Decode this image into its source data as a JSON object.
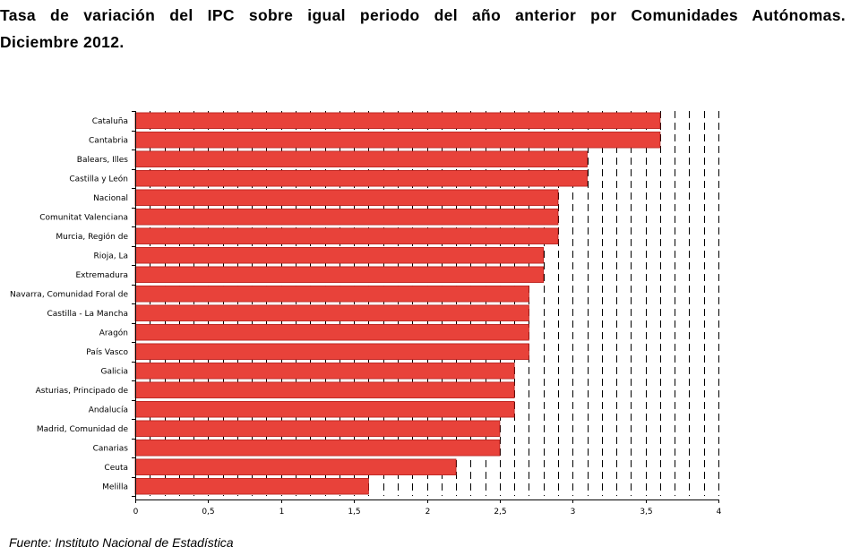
{
  "title_line1": "Tasa de variación del IPC sobre igual periodo del año anterior por Comunidades Autónomas.",
  "title_line2": "Diciembre 2012.",
  "source": "Fuente: Instituto Nacional de Estadística",
  "colors": {
    "bar": "#e8423a",
    "bar_border": "#b51e1a",
    "gridline": "#000000"
  },
  "chart_data": {
    "type": "bar",
    "orientation": "horizontal",
    "title": "Tasa de variación del IPC sobre igual periodo del año anterior por Comunidades Autónomas. Diciembre 2012.",
    "categories": [
      "Cataluña",
      "Cantabria",
      "Balears, Illes",
      "Castilla y León",
      "Nacional",
      "Comunitat Valenciana",
      "Murcia, Región de",
      "Rioja, La",
      "Extremadura",
      "Navarra, Comunidad Foral de",
      "Castilla - La Mancha",
      "Aragón",
      "País Vasco",
      "Galicia",
      "Asturias, Principado de",
      "Andalucía",
      "Madrid, Comunidad de",
      "Canarias",
      "Ceuta",
      "Melilla"
    ],
    "values": [
      3.6,
      3.6,
      3.1,
      3.1,
      2.9,
      2.9,
      2.9,
      2.8,
      2.8,
      2.7,
      2.7,
      2.7,
      2.7,
      2.6,
      2.6,
      2.6,
      2.5,
      2.5,
      2.2,
      1.6
    ],
    "xlim": [
      0,
      4
    ],
    "xticks": [
      0,
      0.5,
      1,
      1.5,
      2,
      2.5,
      3,
      3.5,
      4
    ],
    "xtick_labels": [
      "0",
      "0,5",
      "1",
      "1,5",
      "2",
      "2,5",
      "3",
      "3,5",
      "4"
    ],
    "grid": "vertical dashed lines every 0.1",
    "legend": "none",
    "xlabel": "",
    "ylabel": ""
  }
}
